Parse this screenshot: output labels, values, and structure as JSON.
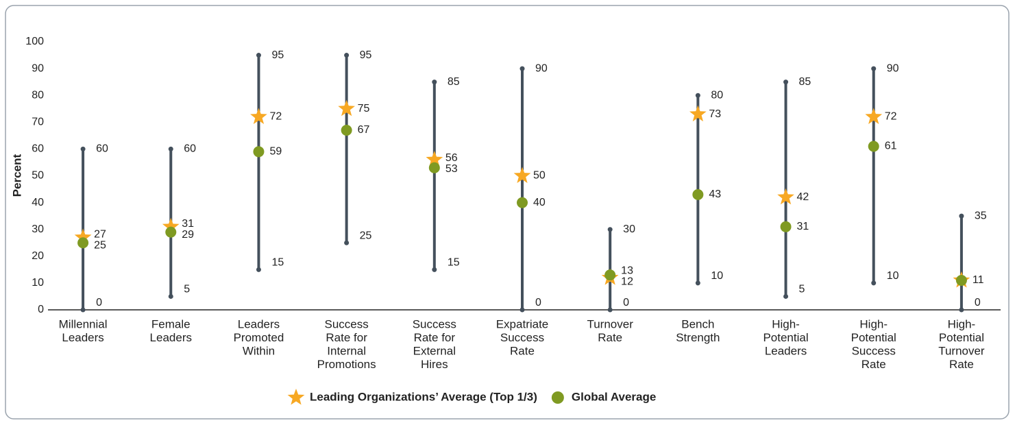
{
  "chart_data": {
    "type": "range",
    "y_label": "Percent",
    "categories": [
      [
        "Millennial",
        "Leaders"
      ],
      [
        "Female",
        "Leaders"
      ],
      [
        "Leaders",
        "Promoted",
        "Within"
      ],
      [
        "Success",
        "Rate for",
        "Internal",
        "Promotions"
      ],
      [
        "Success",
        "Rate for",
        "External",
        "Hires"
      ],
      [
        "Expatriate",
        "Success",
        "Rate"
      ],
      [
        "Turnover",
        "Rate"
      ],
      [
        "Bench",
        "Strength"
      ],
      [
        "High-",
        "Potential",
        "Leaders"
      ],
      [
        "High-",
        "Potential",
        "Success",
        "Rate"
      ],
      [
        "High-",
        "Potential",
        "Turnover",
        "Rate"
      ]
    ],
    "low": [
      0,
      5,
      15,
      25,
      15,
      0,
      0,
      10,
      5,
      10,
      0
    ],
    "high": [
      60,
      60,
      95,
      95,
      85,
      90,
      30,
      80,
      85,
      90,
      35
    ],
    "range_color": "#44505c",
    "series": [
      {
        "name": "Leading Organizations’ Average (Top 1/3)",
        "marker": "star",
        "color": "#f7a823",
        "values": [
          27,
          31,
          72,
          75,
          56,
          50,
          12,
          73,
          42,
          72,
          11
        ]
      },
      {
        "name": "Global Average",
        "marker": "circle",
        "color": "#7f9a22",
        "values": [
          25,
          29,
          59,
          67,
          53,
          40,
          13,
          43,
          31,
          61,
          11
        ]
      }
    ],
    "ylim": [
      0,
      100
    ],
    "yticks": [
      0,
      10,
      20,
      30,
      40,
      50,
      60,
      70,
      80,
      90,
      100
    ],
    "grid": false,
    "legend": "bottom"
  }
}
